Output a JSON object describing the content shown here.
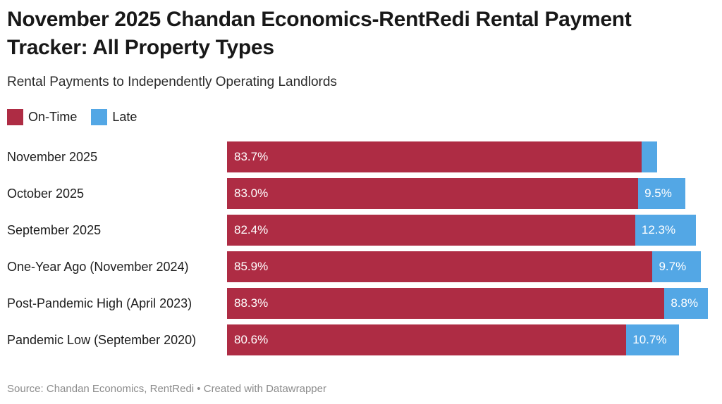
{
  "header": {
    "title": "November 2025 Chandan Economics-RentRedi Rental Payment Tracker: All Property Types",
    "subtitle": "Rental Payments to Independently Operating Landlords"
  },
  "legend": [
    {
      "label": "On-Time",
      "color": "#ae2c44"
    },
    {
      "label": "Late",
      "color": "#53a7e5"
    }
  ],
  "chart_data": {
    "type": "bar",
    "orientation": "horizontal",
    "stacked": true,
    "grid": false,
    "legend_position": "top-left",
    "xlim": [
      0,
      98.5
    ],
    "categories": [
      "November 2025",
      "October 2025",
      "September 2025",
      "One-Year Ago (November 2024)",
      "Post-Pandemic High (April 2023)",
      "Pandemic Low (September 2020)"
    ],
    "series": [
      {
        "name": "On-Time",
        "color": "#ae2c44",
        "values": [
          83.7,
          83.0,
          82.4,
          85.9,
          88.3,
          80.6
        ],
        "labels": [
          "83.7%",
          "83.0%",
          "82.4%",
          "85.9%",
          "88.3%",
          "80.6%"
        ]
      },
      {
        "name": "Late",
        "color": "#53a7e5",
        "values": [
          3.1,
          9.5,
          12.3,
          9.7,
          8.8,
          10.7
        ],
        "labels": [
          "",
          "9.5%",
          "12.3%",
          "9.7%",
          "8.8%",
          "10.7%"
        ]
      }
    ]
  },
  "footer": {
    "source": "Source: Chandan Economics, RentRedi • Created with Datawrapper"
  }
}
